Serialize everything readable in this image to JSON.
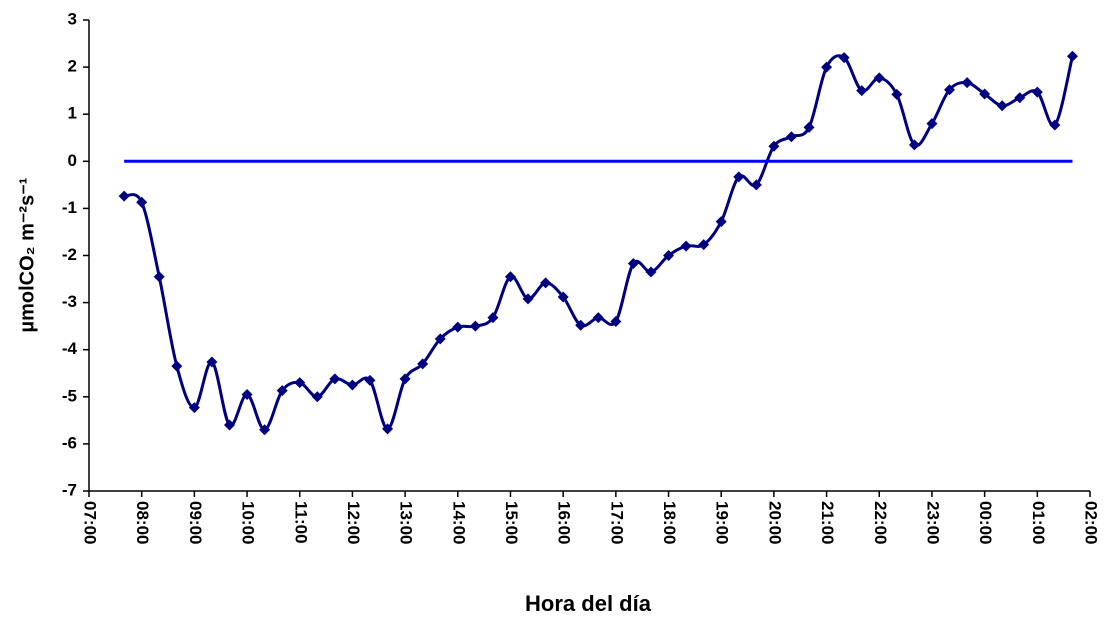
{
  "chart_data": {
    "type": "line",
    "xlabel": "Hora del día",
    "ylabel": "µmolCO₂ m⁻²s⁻¹",
    "x": [
      7.667,
      8.0,
      8.333,
      8.667,
      9.0,
      9.333,
      9.667,
      10.0,
      10.333,
      10.667,
      11.0,
      11.333,
      11.667,
      12.0,
      12.333,
      12.667,
      13.0,
      13.333,
      13.667,
      14.0,
      14.333,
      14.667,
      15.0,
      15.333,
      15.667,
      16.0,
      16.333,
      16.667,
      17.0,
      17.333,
      17.667,
      18.0,
      18.333,
      18.667,
      19.0,
      19.333,
      19.667,
      20.0,
      20.333,
      20.667,
      21.0,
      21.333,
      21.667,
      22.0,
      22.333,
      22.667,
      23.0,
      23.333,
      23.667,
      24.0,
      24.333,
      24.667,
      25.0,
      25.333,
      25.667
    ],
    "series": [
      {
        "color": "#000080",
        "markers": true,
        "values": [
          -0.74,
          -0.87,
          -2.45,
          -4.35,
          -5.23,
          -4.26,
          -5.6,
          -4.95,
          -5.7,
          -4.87,
          -4.7,
          -5.0,
          -4.62,
          -4.75,
          -4.65,
          -5.68,
          -4.62,
          -4.3,
          -3.77,
          -3.52,
          -3.5,
          -3.32,
          -2.45,
          -2.92,
          -2.58,
          -2.88,
          -3.48,
          -3.32,
          -3.4,
          -2.17,
          -2.35,
          -2.0,
          -1.8,
          -1.77,
          -1.28,
          -0.33,
          -0.5,
          0.32,
          0.52,
          0.72,
          2.0,
          2.2,
          1.5,
          1.77,
          1.42,
          0.35,
          0.8,
          1.52,
          1.67,
          1.43,
          1.18,
          1.35,
          1.47,
          0.77,
          2.23
        ]
      },
      {
        "color": "#0000ff",
        "markers": false,
        "values": [
          0,
          0,
          0,
          0,
          0,
          0,
          0,
          0,
          0,
          0,
          0,
          0,
          0,
          0,
          0,
          0,
          0,
          0,
          0,
          0,
          0,
          0,
          0,
          0,
          0,
          0,
          0,
          0,
          0,
          0,
          0,
          0,
          0,
          0,
          0,
          0,
          0,
          0,
          0,
          0,
          0,
          0,
          0,
          0,
          0,
          0,
          0,
          0,
          0,
          0,
          0,
          0,
          0,
          0,
          0
        ]
      }
    ],
    "xlim": [
      7,
      26
    ],
    "xticks": [
      {
        "value": 7,
        "label": "07:00"
      },
      {
        "value": 8,
        "label": "08:00"
      },
      {
        "value": 9,
        "label": "09:00"
      },
      {
        "value": 10,
        "label": "10:00"
      },
      {
        "value": 11,
        "label": "11:00"
      },
      {
        "value": 12,
        "label": "12:00"
      },
      {
        "value": 13,
        "label": "13:00"
      },
      {
        "value": 14,
        "label": "14:00"
      },
      {
        "value": 15,
        "label": "15:00"
      },
      {
        "value": 16,
        "label": "16:00"
      },
      {
        "value": 17,
        "label": "17:00"
      },
      {
        "value": 18,
        "label": "18:00"
      },
      {
        "value": 19,
        "label": "19:00"
      },
      {
        "value": 20,
        "label": "20:00"
      },
      {
        "value": 21,
        "label": "21:00"
      },
      {
        "value": 22,
        "label": "22:00"
      },
      {
        "value": 23,
        "label": "23:00"
      },
      {
        "value": 24,
        "label": "00:00"
      },
      {
        "value": 25,
        "label": "01:00"
      },
      {
        "value": 26,
        "label": "02:00"
      }
    ],
    "ylim": [
      -7,
      3
    ],
    "yticks": [
      -7,
      -6,
      -5,
      -4,
      -3,
      -2,
      -1,
      0,
      1,
      2,
      3
    ],
    "grid": false
  }
}
